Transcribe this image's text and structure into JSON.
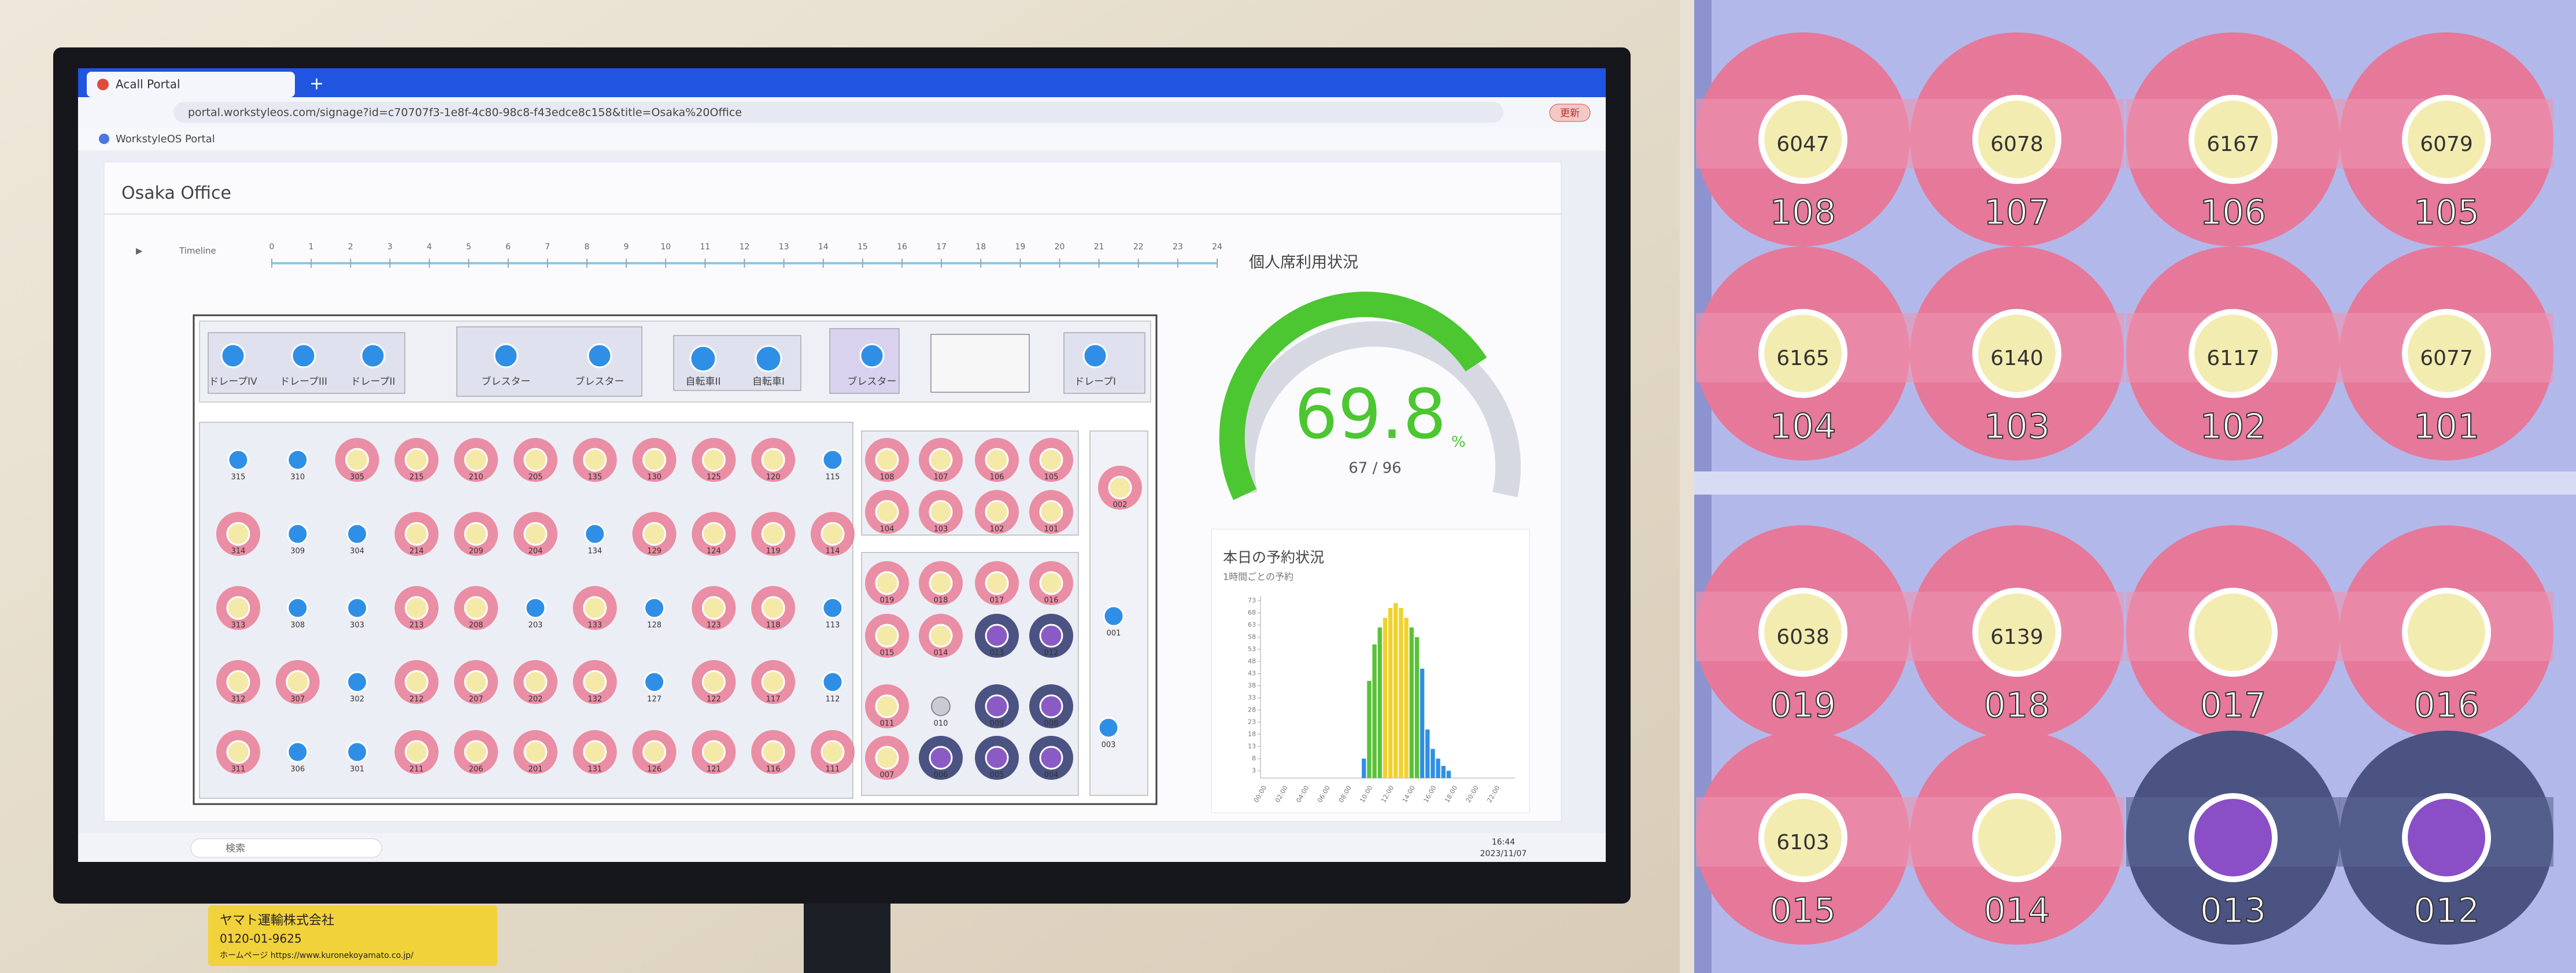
{
  "browser": {
    "tab_title": "Acall Portal",
    "new_tab": "+",
    "url": "portal.workstyleos.com/signage?id=c70707f3-1e8f-4c80-98c8-f43edce8c158&title=Osaka%20Office",
    "app_name": "WorkstyleOS Portal",
    "update_button": "更新"
  },
  "page": {
    "title": "Osaka Office"
  },
  "timeline": {
    "label": "Timeline",
    "ticks": [
      0,
      1,
      2,
      3,
      4,
      5,
      6,
      7,
      8,
      9,
      10,
      11,
      12,
      13,
      14,
      15,
      16,
      17,
      18,
      19,
      20,
      21,
      22,
      23,
      24
    ]
  },
  "floor_plan": {
    "rooms": [
      "ドレープIV",
      "ドレープIII",
      "ドレープII",
      "ブレスター",
      "ブレスター",
      "自転車II",
      "自転車I",
      "ブレスター",
      "ドレープI"
    ],
    "left_zone": [
      [
        {
          "no": "315",
          "state": "free"
        },
        {
          "no": "314",
          "state": "occupied"
        },
        {
          "no": "313",
          "state": "occupied"
        },
        {
          "no": "312",
          "state": "occupied"
        },
        {
          "no": "311",
          "state": "occupied"
        }
      ],
      [
        {
          "no": "310",
          "state": "free"
        },
        {
          "no": "309",
          "state": "free"
        },
        {
          "no": "308",
          "state": "free"
        },
        {
          "no": "307",
          "state": "occupied"
        },
        {
          "no": "306",
          "state": "free"
        }
      ],
      [
        {
          "no": "305",
          "state": "occupied"
        },
        {
          "no": "304",
          "state": "free"
        },
        {
          "no": "303",
          "state": "free"
        },
        {
          "no": "302",
          "state": "free"
        },
        {
          "no": "301",
          "state": "free"
        }
      ],
      [
        {
          "no": "215",
          "state": "occupied"
        },
        {
          "no": "214",
          "state": "occupied"
        },
        {
          "no": "213",
          "state": "occupied"
        },
        {
          "no": "212",
          "state": "occupied"
        },
        {
          "no": "211",
          "state": "occupied"
        }
      ],
      [
        {
          "no": "210",
          "state": "occupied"
        },
        {
          "no": "209",
          "state": "occupied"
        },
        {
          "no": "208",
          "state": "occupied"
        },
        {
          "no": "207",
          "state": "occupied"
        },
        {
          "no": "206",
          "state": "occupied"
        }
      ],
      [
        {
          "no": "205",
          "state": "occupied"
        },
        {
          "no": "204",
          "state": "occupied"
        },
        {
          "no": "203",
          "state": "free"
        },
        {
          "no": "202",
          "state": "occupied"
        },
        {
          "no": "201",
          "state": "occupied"
        }
      ],
      [
        {
          "no": "135",
          "state": "occupied"
        },
        {
          "no": "134",
          "state": "free"
        },
        {
          "no": "133",
          "state": "occupied"
        },
        {
          "no": "132",
          "state": "occupied"
        },
        {
          "no": "131",
          "state": "occupied"
        }
      ],
      [
        {
          "no": "130",
          "state": "occupied"
        },
        {
          "no": "129",
          "state": "occupied"
        },
        {
          "no": "128",
          "state": "free"
        },
        {
          "no": "127",
          "state": "free"
        },
        {
          "no": "126",
          "state": "occupied"
        }
      ],
      [
        {
          "no": "125",
          "state": "occupied"
        },
        {
          "no": "124",
          "state": "occupied"
        },
        {
          "no": "123",
          "state": "occupied"
        },
        {
          "no": "122",
          "state": "occupied"
        },
        {
          "no": "121",
          "state": "occupied"
        }
      ],
      [
        {
          "no": "120",
          "state": "occupied"
        },
        {
          "no": "119",
          "state": "occupied"
        },
        {
          "no": "118",
          "state": "occupied"
        },
        {
          "no": "117",
          "state": "occupied"
        },
        {
          "no": "116",
          "state": "occupied"
        }
      ],
      [
        {
          "no": "115",
          "state": "free"
        },
        {
          "no": "114",
          "state": "occupied"
        },
        {
          "no": "113",
          "state": "free"
        },
        {
          "no": "112",
          "state": "free"
        },
        {
          "no": "111",
          "state": "occupied"
        }
      ]
    ],
    "right_zone": [
      [
        {
          "no": "108",
          "state": "occupied"
        },
        {
          "no": "107",
          "state": "occupied"
        },
        {
          "no": "106",
          "state": "occupied"
        },
        {
          "no": "105",
          "state": "occupied"
        }
      ],
      [
        {
          "no": "104",
          "state": "occupied"
        },
        {
          "no": "103",
          "state": "occupied"
        },
        {
          "no": "102",
          "state": "occupied"
        },
        {
          "no": "101",
          "state": "occupied"
        }
      ],
      [
        {
          "no": "019",
          "state": "occupied"
        },
        {
          "no": "018",
          "state": "occupied"
        },
        {
          "no": "017",
          "state": "occupied"
        },
        {
          "no": "016",
          "state": "occupied"
        }
      ],
      [
        {
          "no": "015",
          "state": "occupied"
        },
        {
          "no": "014",
          "state": "occupied"
        },
        {
          "no": "013",
          "state": "blocked"
        },
        {
          "no": "012",
          "state": "blocked"
        }
      ],
      [
        {
          "no": "011",
          "state": "occupied"
        },
        {
          "no": "010",
          "state": "vacant"
        },
        {
          "no": "009",
          "state": "blocked"
        },
        {
          "no": "008",
          "state": "blocked"
        }
      ],
      [
        {
          "no": "007",
          "state": "occupied"
        },
        {
          "no": "006",
          "state": "blocked"
        },
        {
          "no": "005",
          "state": "blocked"
        },
        {
          "no": "004",
          "state": "blocked"
        }
      ]
    ],
    "side_seats": [
      {
        "no": "002",
        "state": "occupied"
      },
      {
        "no": "001",
        "state": "free"
      },
      {
        "no": "003",
        "state": "free"
      }
    ]
  },
  "usage": {
    "title": "個人席利用状況",
    "value": 69.8,
    "unit": "%",
    "count": "67 / 96"
  },
  "reservation": {
    "title": "本日の予約状況",
    "subtitle": "1時間ごとの予約",
    "ylim": [
      0,
      75
    ],
    "yticks": [
      3,
      8,
      13,
      18,
      23,
      28,
      33,
      38,
      43,
      48,
      53,
      58,
      63,
      68,
      73
    ],
    "xlabels": [
      "00:00",
      "02:00",
      "04:00",
      "06:00",
      "08:00",
      "10:00",
      "12:00",
      "14:00",
      "16:00",
      "18:00",
      "20:00",
      "22:00"
    ],
    "series": [
      {
        "color": "#2f8fe6",
        "values": [
          null,
          null,
          null,
          null,
          null,
          null,
          null,
          null,
          null,
          null,
          null,
          null,
          null,
          null,
          null,
          null,
          null,
          null,
          null,
          8,
          null,
          null,
          null,
          null,
          null,
          null,
          null,
          null,
          null,
          null,
          45,
          20,
          12,
          8,
          5,
          3,
          null,
          null,
          null,
          null,
          null,
          null,
          null,
          null,
          null,
          null,
          null,
          null
        ]
      },
      {
        "color": "#58c337",
        "values": [
          null,
          null,
          null,
          null,
          null,
          null,
          null,
          null,
          null,
          null,
          null,
          null,
          null,
          null,
          null,
          null,
          null,
          null,
          null,
          null,
          40,
          55,
          62,
          null,
          null,
          null,
          null,
          null,
          62,
          58,
          null,
          null,
          null,
          null,
          null,
          null,
          null,
          null,
          null,
          null,
          null,
          null,
          null,
          null,
          null,
          null,
          null,
          null
        ]
      },
      {
        "color": "#f0d22c",
        "values": [
          null,
          null,
          null,
          null,
          null,
          null,
          null,
          null,
          null,
          null,
          null,
          null,
          null,
          null,
          null,
          null,
          null,
          null,
          null,
          null,
          null,
          null,
          null,
          66,
          70,
          72,
          70,
          66,
          null,
          null,
          null,
          null,
          null,
          null,
          null,
          null,
          null,
          null,
          null,
          null,
          null,
          null,
          null,
          null,
          null,
          null,
          null,
          null
        ]
      }
    ]
  },
  "taskbar": {
    "search": "検索",
    "time": "16:44",
    "date": "2023/11/07"
  },
  "sticker": {
    "company": "ヤマト運輸株式会社",
    "phone": "0120-01-9625",
    "homepage": "ホームページ https://www.kuronekoyamato.co.jp/"
  },
  "zoom_panel": {
    "rows": [
      [
        {
          "no": "108",
          "state": "occupied",
          "code": "6047"
        },
        {
          "no": "107",
          "state": "occupied",
          "code": "6078"
        },
        {
          "no": "106",
          "state": "occupied",
          "code": "6167"
        },
        {
          "no": "105",
          "state": "occupied",
          "code": "6079"
        }
      ],
      [
        {
          "no": "104",
          "state": "occupied",
          "code": "6165"
        },
        {
          "no": "103",
          "state": "occupied",
          "code": "6140"
        },
        {
          "no": "102",
          "state": "occupied",
          "code": "6117"
        },
        {
          "no": "101",
          "state": "occupied",
          "code": "6077"
        }
      ],
      [
        {
          "no": "019",
          "state": "occupied",
          "code": "6038"
        },
        {
          "no": "018",
          "state": "occupied",
          "code": "6139"
        },
        {
          "no": "017",
          "state": "occupied"
        },
        {
          "no": "016",
          "state": "occupied"
        }
      ],
      [
        {
          "no": "015",
          "state": "occupied",
          "code": "6103"
        },
        {
          "no": "014",
          "state": "occupied"
        },
        {
          "no": "013",
          "state": "blocked"
        },
        {
          "no": "012",
          "state": "blocked"
        }
      ]
    ]
  }
}
